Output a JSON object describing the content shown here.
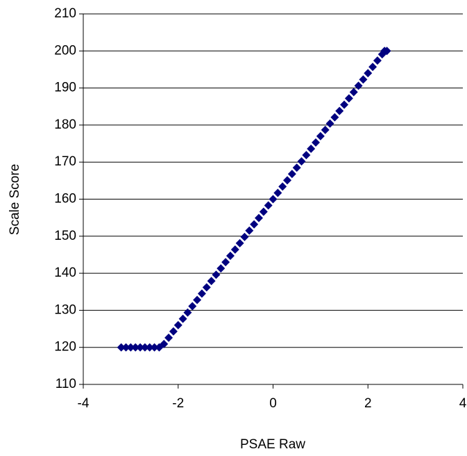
{
  "chart_data": {
    "type": "scatter",
    "x_label": "PSAE Raw",
    "y_label": "Scale Score",
    "x": [
      -3.2,
      -3.1,
      -3.0,
      -2.9,
      -2.8,
      -2.7,
      -2.6,
      -2.5,
      -2.4,
      -2.3,
      -2.2,
      -2.1,
      -2.0,
      -1.9,
      -1.8,
      -1.7,
      -1.6,
      -1.5,
      -1.4,
      -1.3,
      -1.2,
      -1.1,
      -1.0,
      -0.9,
      -0.8,
      -0.7,
      -0.6,
      -0.5,
      -0.4,
      -0.3,
      -0.2,
      -0.1,
      0,
      0.1,
      0.2,
      0.3,
      0.4,
      0.5,
      0.6,
      0.7,
      0.8,
      0.9,
      1.0,
      1.1,
      1.2,
      1.3,
      1.4,
      1.5,
      1.6,
      1.7,
      1.8,
      1.9,
      2.0,
      2.1,
      2.2,
      2.3,
      2.35,
      2.4
    ],
    "values": [
      120,
      120,
      120,
      120,
      120,
      120,
      120,
      120,
      120,
      120.9,
      122.6,
      124.3,
      126,
      127.7,
      129.4,
      131.1,
      132.8,
      134.5,
      136.2,
      137.9,
      139.6,
      141.3,
      143,
      144.7,
      146.4,
      148.1,
      149.8,
      151.5,
      153.2,
      154.9,
      156.6,
      158.3,
      160,
      161.7,
      163.4,
      165.1,
      166.8,
      168.5,
      170.2,
      171.9,
      173.6,
      175.3,
      177,
      178.7,
      180.4,
      182.1,
      183.8,
      185.5,
      187.2,
      188.9,
      190.6,
      192.3,
      194,
      195.7,
      197.4,
      199.1,
      200,
      200
    ],
    "color": "#000080",
    "marker": "diamond",
    "xlim": [
      -4,
      4
    ],
    "xticks": [
      -4,
      -2,
      0,
      2,
      4
    ],
    "ylim": [
      110,
      210
    ],
    "yticks": [
      110,
      120,
      130,
      140,
      150,
      160,
      170,
      180,
      190,
      200,
      210
    ],
    "grid": true
  }
}
